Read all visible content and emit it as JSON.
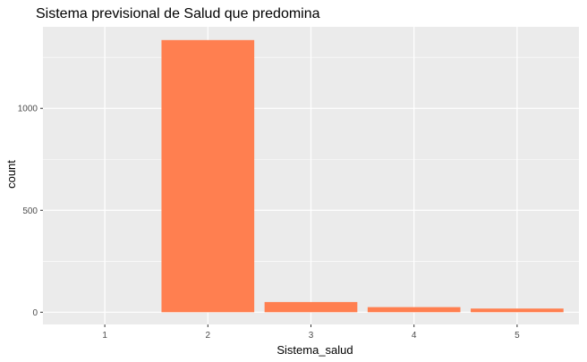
{
  "chart_data": {
    "type": "bar",
    "title": "Sistema previsional de Salud que predomina",
    "xlabel": "Sistema_salud",
    "ylabel": "count",
    "categories": [
      "1",
      "2",
      "3",
      "4",
      "5"
    ],
    "values": [
      0,
      1335,
      50,
      25,
      18
    ],
    "ylim": [
      -60,
      1400
    ],
    "yticks": [
      0,
      500,
      1000
    ],
    "bar_color": "#FF7F50",
    "panel_background": "#EBEBEB",
    "grid_color": "#FFFFFF",
    "grid": true,
    "legend": "none"
  }
}
